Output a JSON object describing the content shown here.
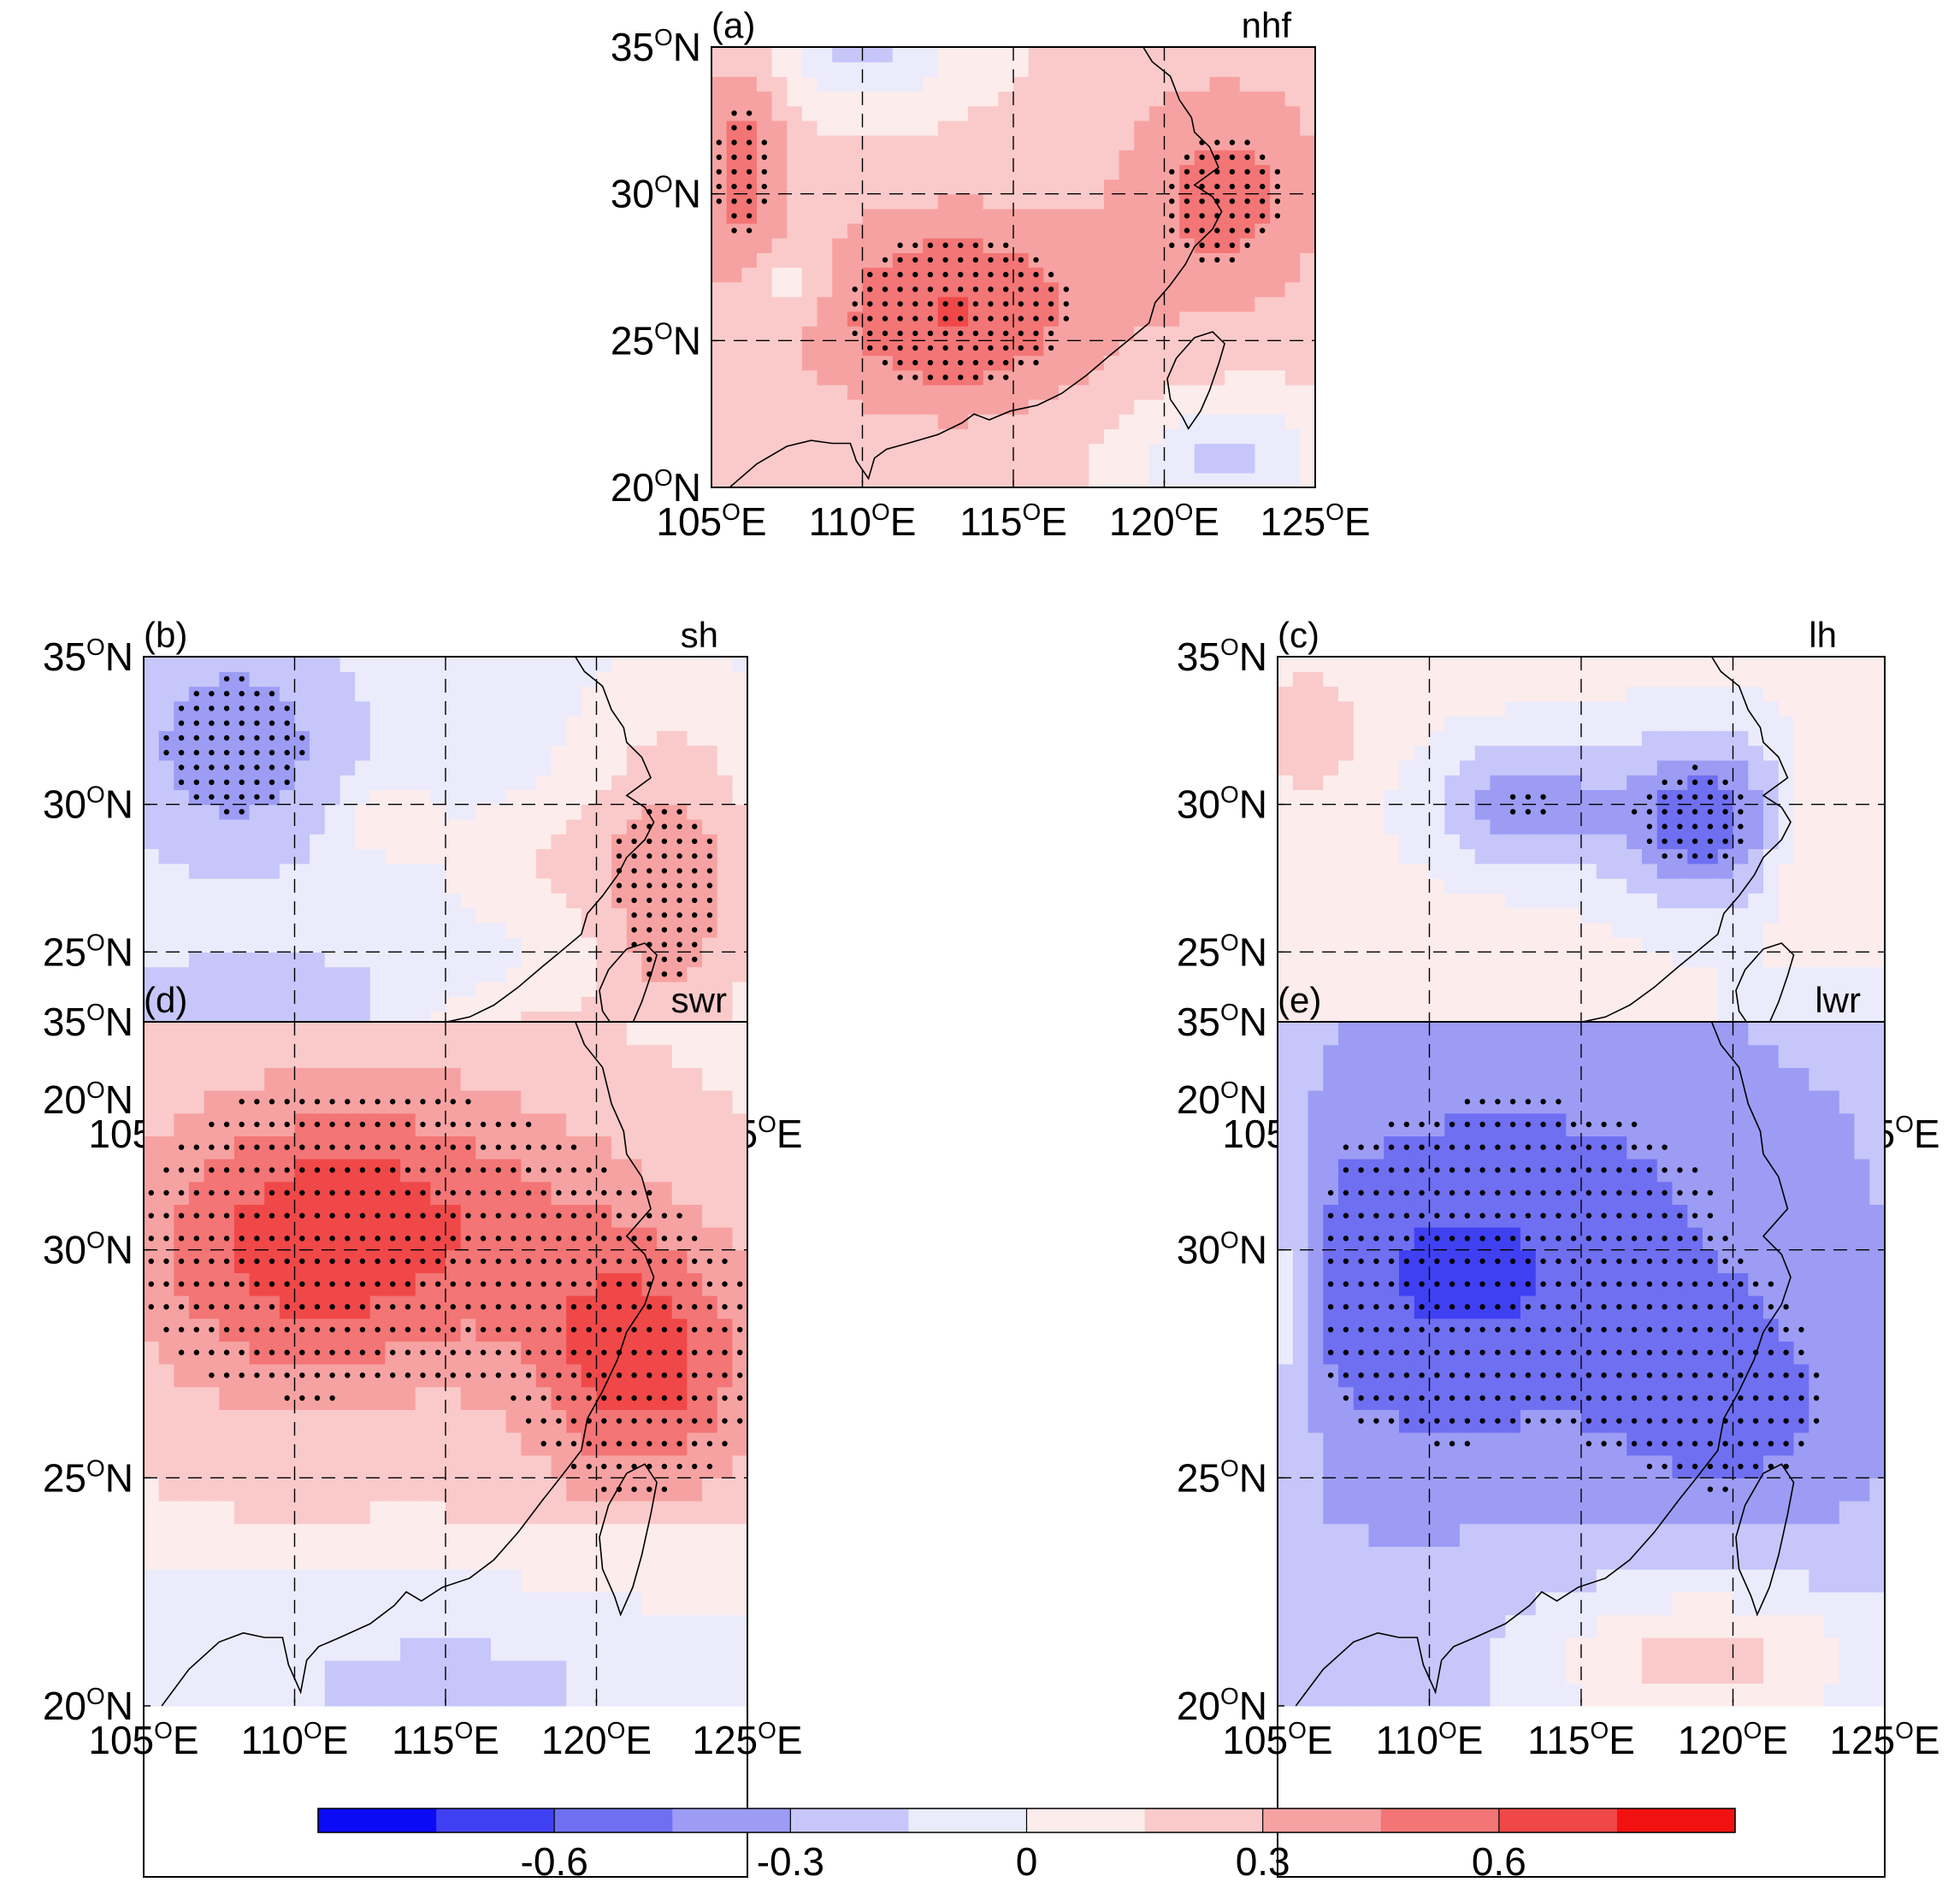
{
  "panels": [
    {
      "id": "a",
      "label": "(a)",
      "var": "nhf"
    },
    {
      "id": "b",
      "label": "(b)",
      "var": "sh"
    },
    {
      "id": "c",
      "label": "(c)",
      "var": "lh"
    },
    {
      "id": "d",
      "label": "(d)",
      "var": "swr"
    },
    {
      "id": "e",
      "label": "(e)",
      "var": "lwr"
    }
  ],
  "axes": {
    "lon_range": [
      105,
      125
    ],
    "lat_range": [
      20,
      35
    ],
    "lon_ticks": [
      105,
      110,
      115,
      120,
      125
    ],
    "lat_ticks": [
      20,
      25,
      30,
      35
    ],
    "lon_labels": [
      "105",
      "110",
      "115",
      "120",
      "125"
    ],
    "lat_labels": [
      "20",
      "25",
      "30",
      "35"
    ],
    "deg": "O",
    "east": "E",
    "north": "N"
  },
  "colorbar": {
    "ticks": [
      "-0.6",
      "-0.3",
      "0",
      "0.3",
      "0.6"
    ],
    "levels": [
      -0.9,
      -0.75,
      -0.6,
      -0.45,
      -0.3,
      -0.15,
      0,
      0.15,
      0.3,
      0.45,
      0.6,
      0.75,
      0.9
    ],
    "colors": [
      "#0b0bf5",
      "#4040f3",
      "#6f6ff2",
      "#9c9cf5",
      "#c6c6fa",
      "#ebebfc",
      "#fcecec",
      "#facaca",
      "#f7a2a2",
      "#f37575",
      "#f04848",
      "#f21111"
    ]
  },
  "colors": {
    "positive": "#f21111",
    "negative": "#0b0bf5",
    "coast": "#000000",
    "stipple": "#000000"
  }
}
